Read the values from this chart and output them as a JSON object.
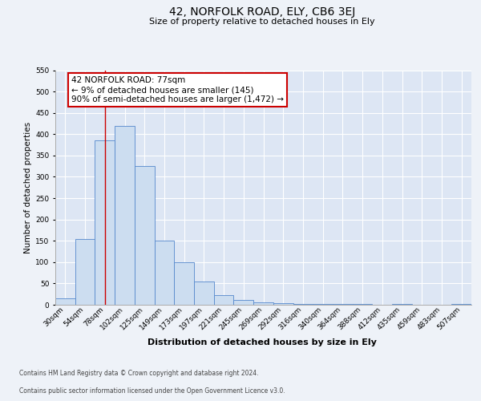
{
  "title": "42, NORFOLK ROAD, ELY, CB6 3EJ",
  "subtitle": "Size of property relative to detached houses in Ely",
  "xlabel": "Distribution of detached houses by size in Ely",
  "ylabel": "Number of detached properties",
  "bar_labels": [
    "30sqm",
    "54sqm",
    "78sqm",
    "102sqm",
    "125sqm",
    "149sqm",
    "173sqm",
    "197sqm",
    "221sqm",
    "245sqm",
    "269sqm",
    "292sqm",
    "316sqm",
    "340sqm",
    "364sqm",
    "388sqm",
    "412sqm",
    "435sqm",
    "459sqm",
    "483sqm",
    "507sqm"
  ],
  "bar_values": [
    15,
    155,
    385,
    420,
    325,
    150,
    100,
    55,
    22,
    12,
    5,
    3,
    2,
    1,
    1,
    1,
    0,
    1,
    0,
    0,
    1
  ],
  "bar_color": "#ccddf0",
  "bar_edge_color": "#5588cc",
  "vline_x": 2.0,
  "vline_color": "#cc0000",
  "annotation_text": "42 NORFOLK ROAD: 77sqm\n← 9% of detached houses are smaller (145)\n90% of semi-detached houses are larger (1,472) →",
  "annotation_box_color": "#ffffff",
  "annotation_box_edge": "#cc0000",
  "ylim": [
    0,
    550
  ],
  "yticks": [
    0,
    50,
    100,
    150,
    200,
    250,
    300,
    350,
    400,
    450,
    500,
    550
  ],
  "footer_line1": "Contains HM Land Registry data © Crown copyright and database right 2024.",
  "footer_line2": "Contains public sector information licensed under the Open Government Licence v3.0.",
  "bg_color": "#eef2f8",
  "plot_bg_color": "#dde6f4",
  "title_fontsize": 10,
  "subtitle_fontsize": 8,
  "xlabel_fontsize": 8,
  "ylabel_fontsize": 7.5,
  "tick_fontsize": 6.5,
  "annot_fontsize": 7.5,
  "footer_fontsize": 5.5
}
